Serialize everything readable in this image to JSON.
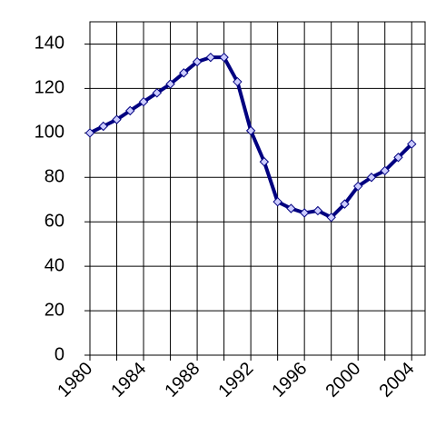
{
  "chart_data": {
    "type": "line",
    "x": [
      1980,
      1981,
      1982,
      1983,
      1984,
      1985,
      1986,
      1987,
      1988,
      1989,
      1990,
      1991,
      1992,
      1993,
      1994,
      1995,
      1996,
      1997,
      1998,
      1999,
      2000,
      2001,
      2002,
      2003,
      2004
    ],
    "series": [
      {
        "color": "#000080",
        "marker_color": "#ccccff",
        "values": [
          100,
          103,
          106,
          110,
          114,
          118,
          122,
          127,
          132,
          134,
          134,
          123,
          101,
          87,
          69,
          66,
          64,
          65,
          62,
          68,
          76,
          80,
          83,
          89,
          95
        ]
      }
    ],
    "xlim": [
      1980,
      2005
    ],
    "xticks": [
      1980,
      {
        "value": 1982,
        "label": null
      },
      1984,
      {
        "value": 1986,
        "label": null
      },
      1988,
      {
        "value": 1990,
        "label": null
      },
      1992,
      {
        "value": 1994,
        "label": null
      },
      1996,
      {
        "value": 1998,
        "label": null
      },
      2000,
      {
        "value": 2002,
        "label": null
      },
      2004
    ],
    "ylim": [
      0,
      150
    ],
    "yticks": [
      0,
      20,
      40,
      60,
      80,
      100,
      120,
      140
    ],
    "grid": true
  }
}
